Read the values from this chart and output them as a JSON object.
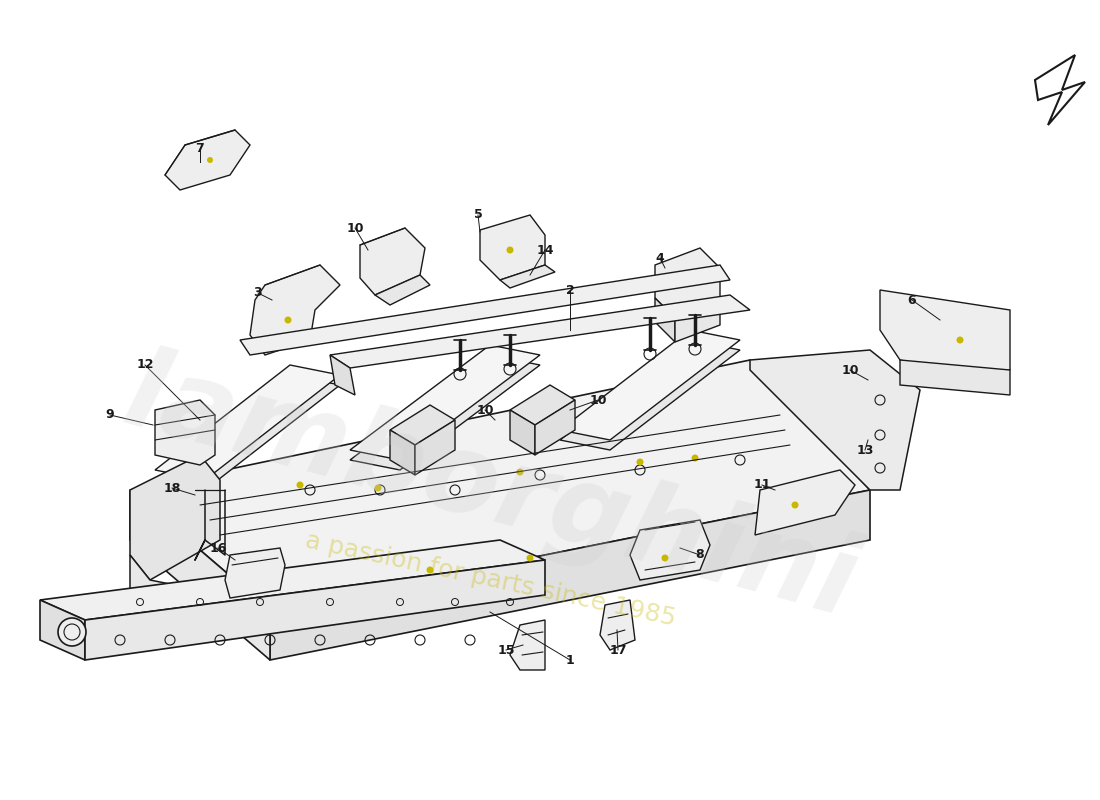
{
  "background_color": "#ffffff",
  "line_color": "#1a1a1a",
  "label_color": "#1a1a1a",
  "gold_color": "#c8b800",
  "fig_width": 11.0,
  "fig_height": 8.0,
  "watermark1": "lamborghini",
  "watermark2": "a passion for parts since 1985"
}
